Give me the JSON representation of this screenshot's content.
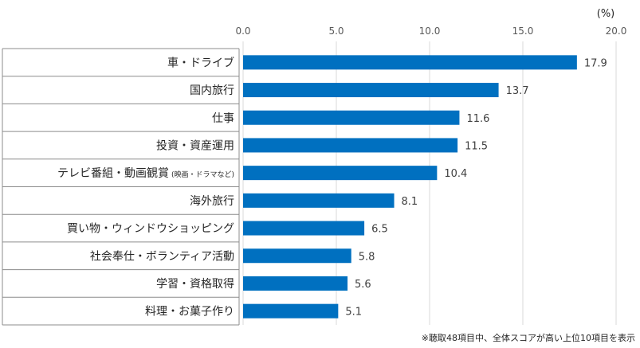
{
  "chart_data": {
    "type": "bar",
    "orientation": "horizontal",
    "unit": "(%)",
    "xlim": [
      0,
      20
    ],
    "xticks": [
      "0.0",
      "5.0",
      "10.0",
      "15.0",
      "20.0"
    ],
    "grid": true,
    "bar_color": "#0070C0",
    "categories": [
      {
        "label": "車・ドライブ",
        "sub": ""
      },
      {
        "label": "国内旅行",
        "sub": ""
      },
      {
        "label": "仕事",
        "sub": ""
      },
      {
        "label": "投資・資産運用",
        "sub": ""
      },
      {
        "label": "テレビ番組・動画観賞",
        "sub": "(映画・ドラマなど)"
      },
      {
        "label": "海外旅行",
        "sub": ""
      },
      {
        "label": "買い物・ウィンドウショッピング",
        "sub": ""
      },
      {
        "label": "社会奉仕・ボランティア活動",
        "sub": ""
      },
      {
        "label": "学習・資格取得",
        "sub": ""
      },
      {
        "label": "料理・お菓子作り",
        "sub": ""
      }
    ],
    "values": [
      17.9,
      13.7,
      11.6,
      11.5,
      10.4,
      8.1,
      6.5,
      5.8,
      5.6,
      5.1
    ],
    "value_labels": [
      "17.9",
      "13.7",
      "11.6",
      "11.5",
      "10.4",
      "8.1",
      "6.5",
      "5.8",
      "5.6",
      "5.1"
    ],
    "footnote": "※聴取48項目中、全体スコアが高い上位10項目を表示"
  }
}
